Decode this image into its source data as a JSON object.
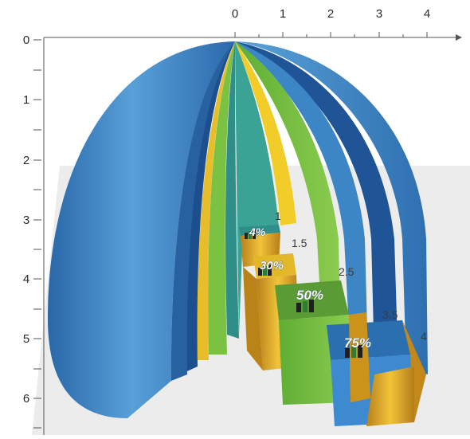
{
  "axes": {
    "top_ticks": [
      "0",
      "1",
      "2",
      "3",
      "4"
    ],
    "left_ticks": [
      "0",
      "1",
      "2",
      "3",
      "4",
      "5",
      "6"
    ]
  },
  "annotations": {
    "step_1": "1",
    "step_1_5": "1.5",
    "step_2_5": "2.5",
    "step_3_5": "3.5",
    "step_4": "4"
  },
  "percent_labels": {
    "p_small": "4%",
    "p_mid": "30%",
    "p_50": "50%",
    "p_75": "75%"
  },
  "colors": {
    "outer_blue": "#3e86c6",
    "dark_blue": "#1f4f8f",
    "teal": "#3aa396",
    "yellow": "#f2cc28",
    "green": "#7cc242",
    "gold": "#d9a21e",
    "backdrop_gray": "#ececec"
  }
}
